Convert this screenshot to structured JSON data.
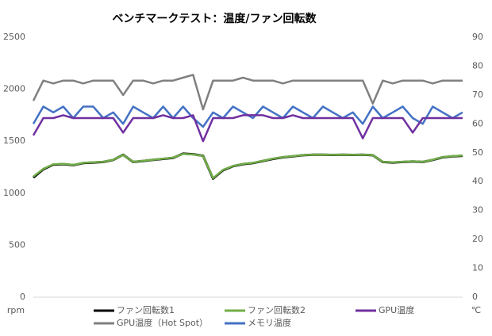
{
  "chart_data": {
    "type": "line",
    "title": "ベンチマークテスト：温度/ファン回転数",
    "y_label": "rpm",
    "y2_label": "℃",
    "categories": [
      null,
      null,
      null,
      null,
      null,
      null,
      null,
      null,
      null,
      null,
      null,
      null,
      null,
      null,
      null,
      null,
      null,
      null,
      null,
      null,
      null,
      null,
      null,
      null,
      null,
      null,
      null,
      null,
      null,
      null,
      null,
      null,
      null,
      null,
      null,
      null,
      null,
      null,
      null,
      null,
      null,
      null,
      null,
      null
    ],
    "ylim": [
      0,
      2500
    ],
    "yticks": [
      0,
      500,
      1000,
      1500,
      2000,
      2500
    ],
    "y2lim": [
      0,
      90
    ],
    "y2ticks": [
      0,
      10,
      20,
      30,
      40,
      50,
      60,
      70,
      80,
      90
    ],
    "legend": "bottom",
    "series": [
      {
        "name": "ファン回転数1",
        "color": "#000000",
        "values": [
          1150,
          1230,
          1275,
          1280,
          1270,
          1290,
          1295,
          1300,
          1320,
          1370,
          1300,
          1310,
          1320,
          1330,
          1340,
          1380,
          1375,
          1360,
          1140,
          1220,
          1260,
          1280,
          1290,
          1310,
          1330,
          1345,
          1355,
          1365,
          1370,
          1370,
          1368,
          1370,
          1368,
          1370,
          1365,
          1300,
          1295,
          1300,
          1305,
          1300,
          1320,
          1345,
          1355,
          1360
        ]
      },
      {
        "name": "ファン回転数2",
        "color": "#70ad47",
        "values": [
          1160,
          1235,
          1278,
          1282,
          1272,
          1292,
          1297,
          1302,
          1322,
          1368,
          1302,
          1312,
          1322,
          1332,
          1342,
          1378,
          1373,
          1358,
          1145,
          1225,
          1262,
          1282,
          1292,
          1312,
          1332,
          1347,
          1357,
          1366,
          1371,
          1371,
          1369,
          1371,
          1369,
          1371,
          1366,
          1302,
          1297,
          1302,
          1307,
          1302,
          1322,
          1347,
          1357,
          1362
        ]
      },
      {
        "name": "GPU温度",
        "color": "#7030a0",
        "axis": "y2",
        "values": [
          56,
          62,
          62,
          63,
          62,
          62,
          62,
          62,
          62,
          57,
          62,
          62,
          62,
          63,
          62,
          62,
          63,
          54,
          62,
          62,
          62,
          63,
          63,
          63,
          62,
          62,
          63,
          62,
          62,
          62,
          62,
          62,
          62,
          55,
          62,
          62,
          62,
          62,
          57,
          62,
          62,
          62,
          62,
          62
        ]
      },
      {
        "name": "GPU温度（Hot Spot）",
        "color": "#808080",
        "axis": "y2",
        "values": [
          68,
          75,
          74,
          75,
          75,
          74,
          75,
          75,
          75,
          70,
          75,
          75,
          74,
          75,
          75,
          76,
          77,
          65,
          75,
          75,
          75,
          76,
          75,
          75,
          75,
          74,
          75,
          75,
          75,
          75,
          75,
          75,
          75,
          75,
          67,
          75,
          74,
          75,
          75,
          75,
          74,
          75,
          75,
          75
        ]
      },
      {
        "name": "メモリ温度",
        "color": "#4472c4",
        "axis": "y2",
        "values": [
          60,
          66,
          64,
          66,
          62,
          66,
          66,
          62,
          64,
          60,
          66,
          64,
          62,
          66,
          62,
          66,
          62,
          59,
          64,
          62,
          66,
          64,
          62,
          66,
          64,
          62,
          66,
          64,
          62,
          66,
          64,
          62,
          64,
          60,
          66,
          62,
          64,
          66,
          62,
          60,
          66,
          64,
          62,
          64
        ]
      }
    ]
  }
}
